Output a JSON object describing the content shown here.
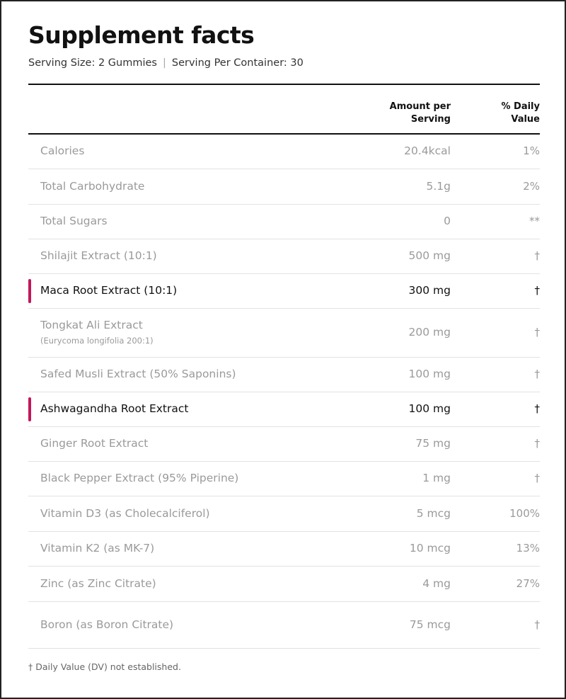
{
  "title": "Supplement facts",
  "serving_size": "Serving Size: 2 Gummies",
  "separator": "|",
  "servings_per_container": "Serving Per Container: 30",
  "columns": {
    "amount_line1": "Amount per",
    "amount_line2": "Serving",
    "dv_line1": "% Daily",
    "dv_line2": "Value"
  },
  "rows": [
    {
      "name": "Calories",
      "sub": "",
      "amount": "20.4kcal",
      "dv": "1%",
      "highlight": false
    },
    {
      "name": "Total Carbohydrate",
      "sub": "",
      "amount": "5.1g",
      "dv": "2%",
      "highlight": false
    },
    {
      "name": "Total Sugars",
      "sub": "",
      "amount": "0",
      "dv": "**",
      "highlight": false
    },
    {
      "name": "Shilajit Extract (10:1)",
      "sub": "",
      "amount": "500 mg",
      "dv": "†",
      "highlight": false
    },
    {
      "name": "Maca Root Extract (10:1)",
      "sub": "",
      "amount": "300 mg",
      "dv": "†",
      "highlight": true
    },
    {
      "name": "Tongkat Ali Extract",
      "sub": "(Eurycoma longifolia 200:1)",
      "amount": "200 mg",
      "dv": "†",
      "highlight": false
    },
    {
      "name": "Safed Musli Extract (50% Saponins)",
      "sub": "",
      "amount": "100 mg",
      "dv": "†",
      "highlight": false
    },
    {
      "name": "Ashwagandha Root Extract",
      "sub": "",
      "amount": "100 mg",
      "dv": "†",
      "highlight": true
    },
    {
      "name": "Ginger Root Extract",
      "sub": "",
      "amount": "75 mg",
      "dv": "†",
      "highlight": false
    },
    {
      "name": "Black Pepper Extract (95% Piperine)",
      "sub": "",
      "amount": "1 mg",
      "dv": "†",
      "highlight": false
    },
    {
      "name": "Vitamin D3 (as Cholecalciferol)",
      "sub": "",
      "amount": "5 mcg",
      "dv": "100%",
      "highlight": false
    },
    {
      "name": "Vitamin K2 (as MK-7)",
      "sub": "",
      "amount": "10 mcg",
      "dv": "13%",
      "highlight": false
    },
    {
      "name": "Zinc (as Zinc Citrate)",
      "sub": "",
      "amount": "4 mg",
      "dv": "27%",
      "highlight": false
    },
    {
      "name": "Boron (as Boron Citrate)",
      "sub": "",
      "amount": "75 mcg",
      "dv": "†",
      "highlight": false
    }
  ],
  "footer": "† Daily Value (DV) not established.",
  "colors": {
    "highlight_bar": "#c2185b",
    "muted_text": "#9a9a9a",
    "strong_text": "#111111"
  }
}
